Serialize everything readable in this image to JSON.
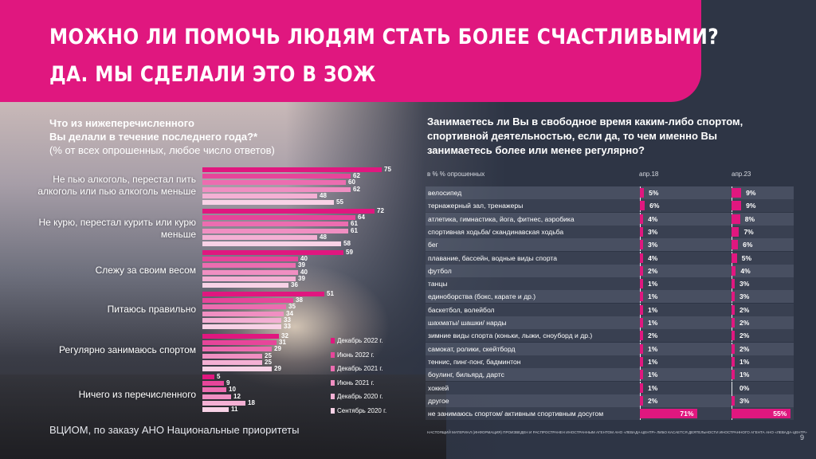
{
  "header": {
    "title_line1": "МОЖНО ЛИ ПОМОЧЬ ЛЮДЯМ СТАТЬ БОЛЕЕ СЧАСТЛИВЫМИ?",
    "title_line2": "ДА. МЫ СДЕЛАЛИ ЭТО В ЗОЖ"
  },
  "colors": {
    "accent": "#e0177f",
    "series": [
      "#e0177f",
      "#e7459a",
      "#ec6db0",
      "#f08fc2",
      "#f4b0d4",
      "#f8d2e6"
    ]
  },
  "left_question": {
    "line1": "Что из нижеперечисленного",
    "line2": "Вы делали в течение последнего года?*",
    "line3": "(% от всех опрошенных, любое число ответов)"
  },
  "right_question": "Занимаетесь ли Вы в свободное время каким-либо спортом, спортивной деятельностью, если да, то чем именно Вы занимаетесь более или менее регулярно?",
  "chart_data": [
    {
      "type": "bar",
      "orientation": "horizontal",
      "categories": [
        "Не пью алкоголь, перестал пить алкоголь или пью алкоголь меньше",
        "Не курю, перестал курить или курю меньше",
        "Слежу за своим весом",
        "Питаюсь правильно",
        "Регулярно занимаюсь спортом",
        "Ничего из перечисленного"
      ],
      "series": [
        {
          "name": "Декабрь 2022 г.",
          "values": [
            75,
            72,
            59,
            51,
            32,
            5
          ]
        },
        {
          "name": "Июнь 2022 г.",
          "values": [
            62,
            64,
            40,
            38,
            31,
            9
          ]
        },
        {
          "name": "Декабрь 2021 г.",
          "values": [
            60,
            61,
            39,
            35,
            29,
            10
          ]
        },
        {
          "name": "Июнь 2021 г.",
          "values": [
            62,
            61,
            40,
            34,
            25,
            12
          ]
        },
        {
          "name": "Декабрь 2020 г.",
          "values": [
            48,
            48,
            39,
            33,
            25,
            18
          ]
        },
        {
          "name": "Сентябрь 2020 г.",
          "values": [
            55,
            58,
            36,
            33,
            29,
            11
          ]
        }
      ],
      "legend_position": "right"
    },
    {
      "type": "bar",
      "orientation": "horizontal",
      "units_label": "в % % опрошенных",
      "column_headers": [
        "апр.18",
        "апр.23"
      ],
      "categories": [
        "велосипед",
        "тернажерный зал, тренажеры",
        "атлетика, гимнастика, йога, фитнес, аэробика",
        "спортивная ходьба/ скандинавская ходьба",
        "бег",
        "плавание, бассейн, водные виды спорта",
        "футбол",
        "танцы",
        "единоборства (бокс, карате и др.)",
        "баскетбол, волейбол",
        "шахматы/ шашки/ нарды",
        "зимние виды спорта (коньки, лыжи, сноуборд и др.)",
        "самокат, ролики, скейтборд",
        "теннис, пинг-понг, бадминтон",
        "боулинг, бильярд, дартс",
        "хоккей",
        "другое",
        "не занимаюсь спортом/ активным спортивным досугом"
      ],
      "series": [
        {
          "name": "апр.18",
          "values": [
            5,
            6,
            4,
            3,
            3,
            4,
            2,
            1,
            1,
            1,
            1,
            2,
            1,
            1,
            1,
            1,
            2,
            71
          ]
        },
        {
          "name": "апр.23",
          "values": [
            9,
            9,
            8,
            7,
            6,
            5,
            4,
            3,
            3,
            2,
            2,
            2,
            2,
            1,
            1,
            0,
            3,
            55
          ]
        }
      ]
    }
  ],
  "footer": {
    "source": "ВЦИОМ, по заказу АНО Национальные приоритеты",
    "disclaimer": "НАСТОЯЩИЙ МАТЕРИАЛ (ИНФОРМАЦИЯ) ПРОИЗВЕДЕН И РАСПРОСТРАНЕН ИНОСТРАННЫМ АГЕНТОМ АНО «ЛЕВАДА-ЦЕНТР» ЛИБО КАСАЕТСЯ ДЕЯТЕЛЬНОСТИ ИНОСТРАННОГО АГЕНТА АНО «ЛЕВАДА-ЦЕНТР»",
    "page_number": "9"
  }
}
